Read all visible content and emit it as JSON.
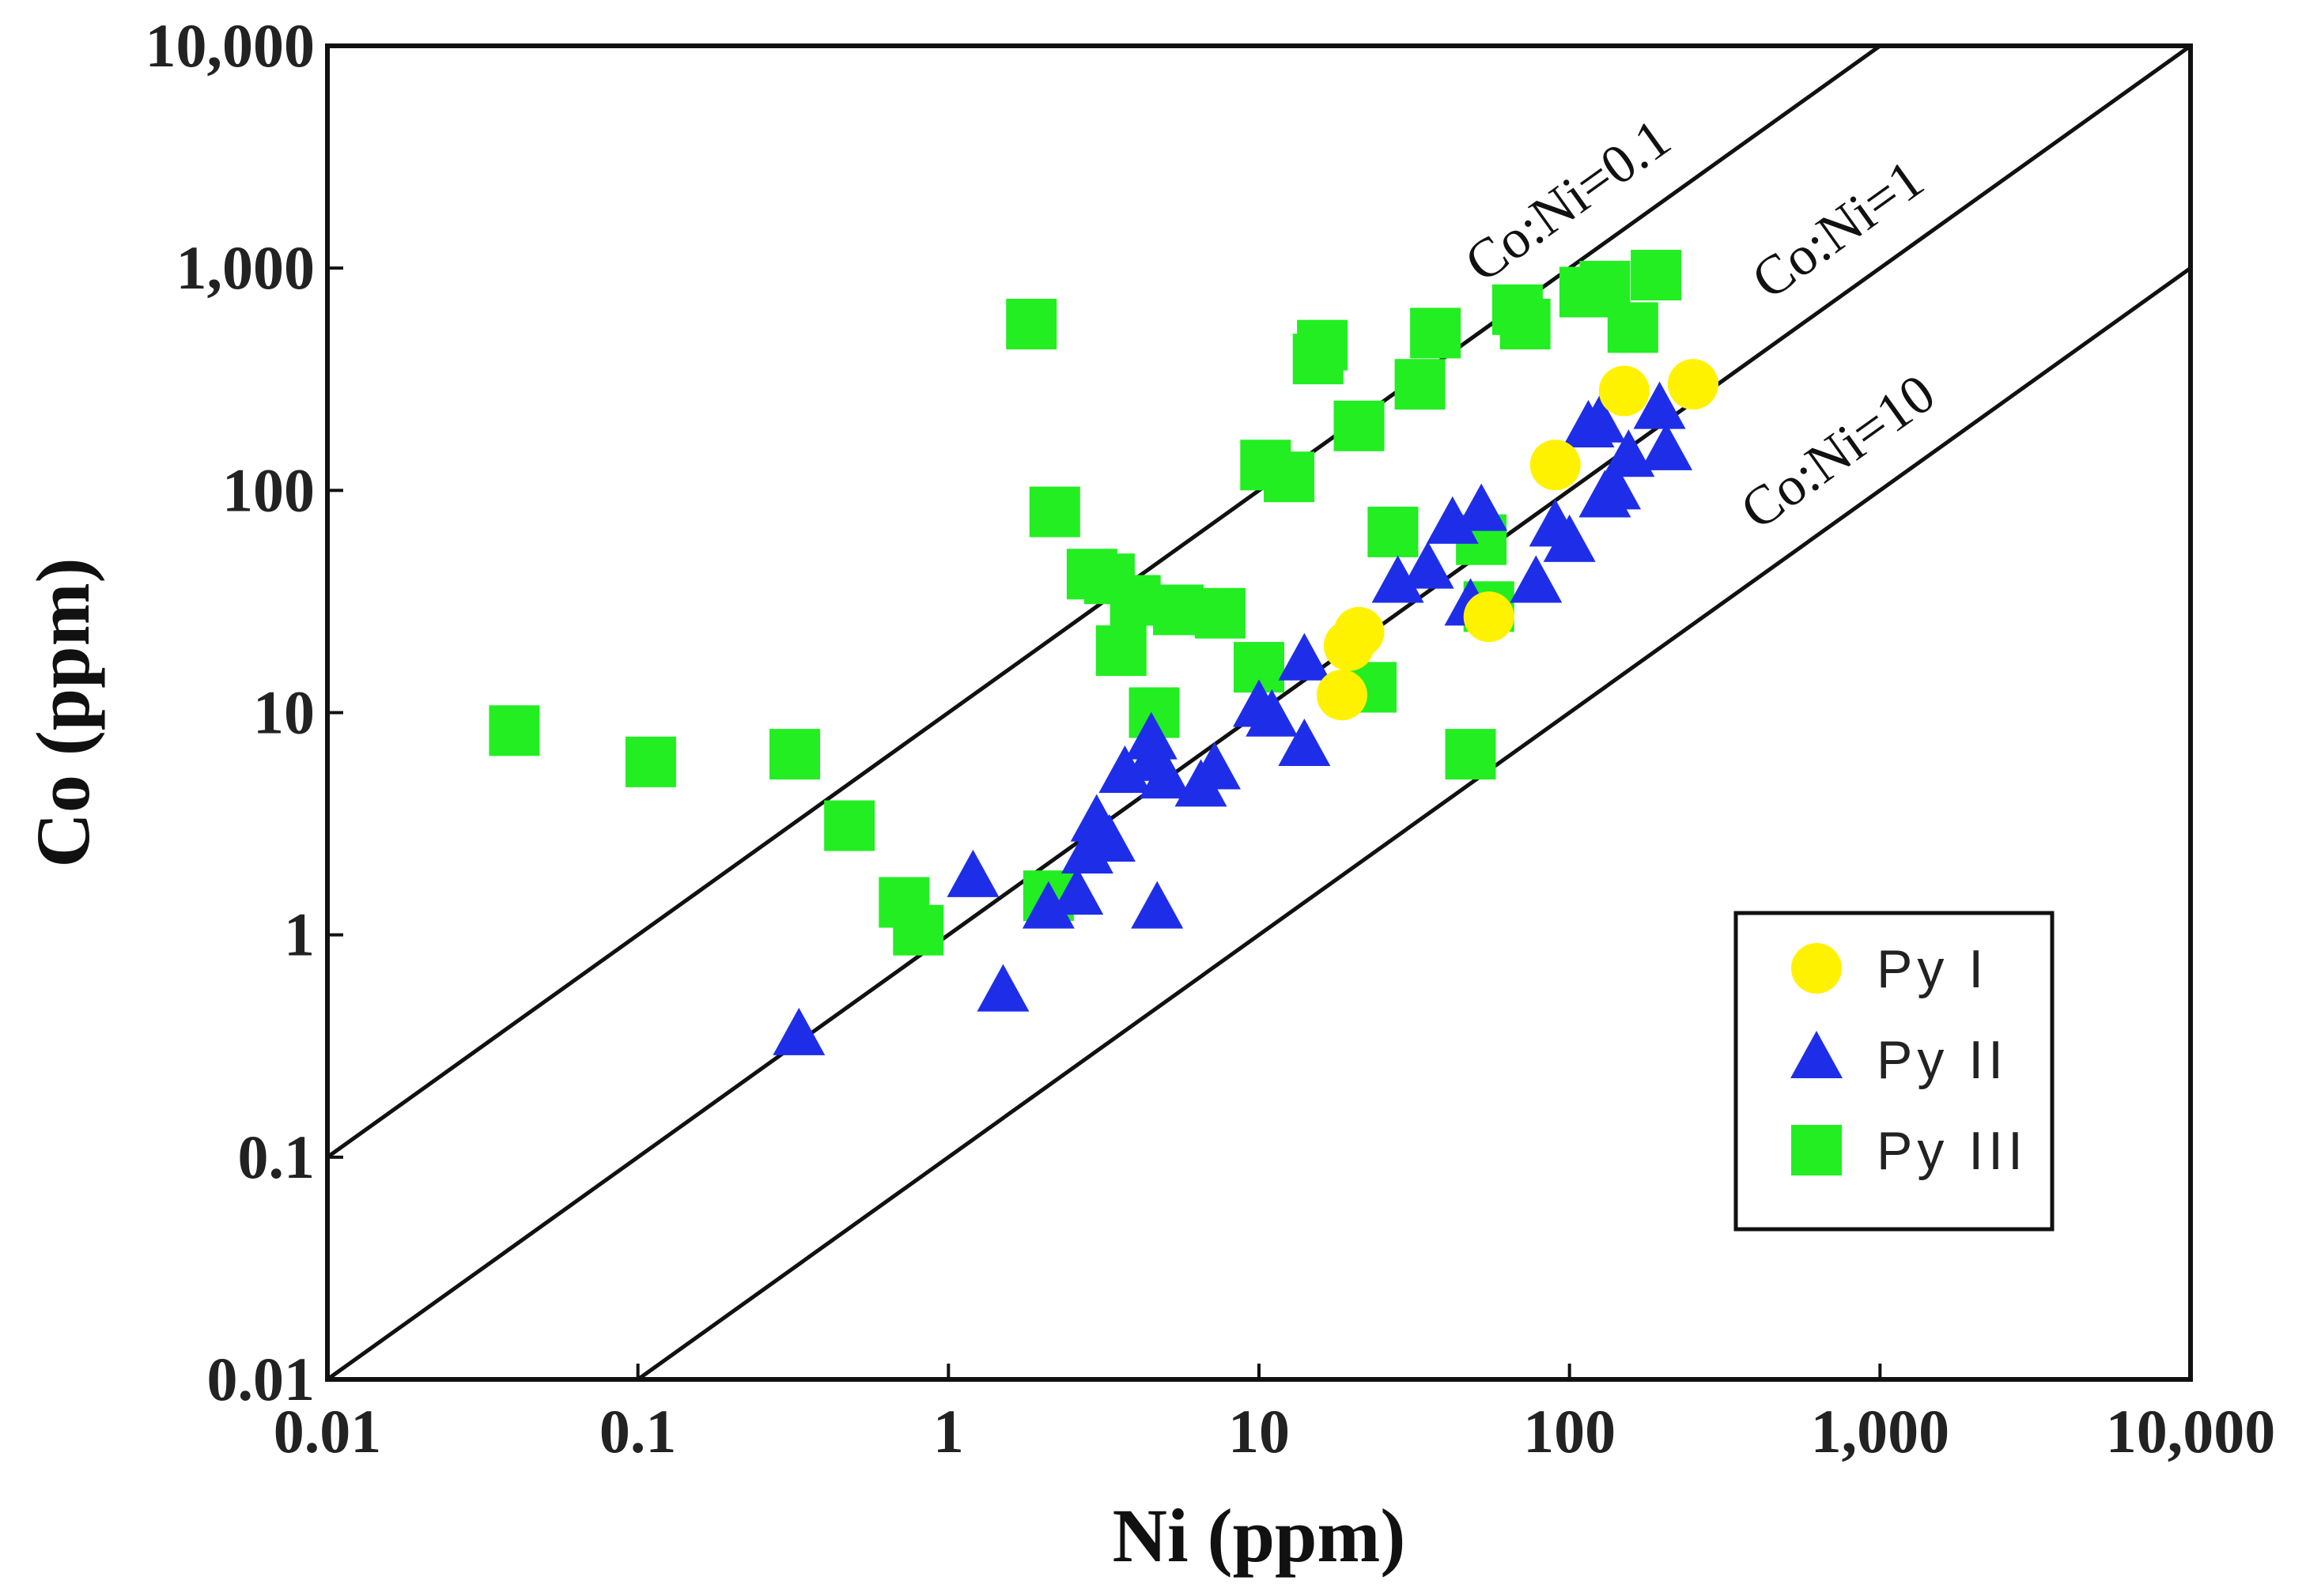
{
  "chart_data": {
    "type": "scatter",
    "title": "",
    "xlabel": "Ni (ppm)",
    "ylabel": "Co (ppm)",
    "xscale": "log",
    "yscale": "log",
    "xlim": [
      0.01,
      10000
    ],
    "ylim": [
      0.01,
      10000
    ],
    "xticks": [
      0.01,
      0.1,
      1,
      10,
      100,
      1000,
      10000
    ],
    "yticks": [
      0.01,
      0.1,
      1,
      10,
      100,
      1000,
      10000
    ],
    "xtick_labels": [
      "0.01",
      "0.1",
      "1",
      "10",
      "100",
      "1,000",
      "10,000"
    ],
    "ytick_labels": [
      "0.01",
      "0.1",
      "1",
      "10",
      "100",
      "1,000",
      "10,000"
    ],
    "grid": false,
    "legend_position": "bottom-right",
    "ratio_lines": [
      {
        "label": "Co:Ni=0.1",
        "ratio": 10
      },
      {
        "label": "Co:Ni=1",
        "ratio": 1
      },
      {
        "label": "Co:Ni=10",
        "ratio": 0.1
      }
    ],
    "series": [
      {
        "name": "Py I",
        "marker": "circle",
        "color": "#FFF200",
        "points": [
          [
            18.5,
            12
          ],
          [
            19.5,
            20
          ],
          [
            21,
            23
          ],
          [
            55,
            27
          ],
          [
            90,
            130
          ],
          [
            150,
            280
          ],
          [
            250,
            300
          ]
        ]
      },
      {
        "name": "Py II",
        "marker": "triangle",
        "color": "#1E2EE8",
        "points": [
          [
            0.33,
            0.35
          ],
          [
            1.2,
            1.8
          ],
          [
            1.5,
            0.55
          ],
          [
            2.1,
            1.3
          ],
          [
            2.6,
            1.5
          ],
          [
            2.8,
            2.3
          ],
          [
            3.0,
            3.2
          ],
          [
            3.3,
            2.6
          ],
          [
            3.7,
            5.3
          ],
          [
            4.5,
            7.5
          ],
          [
            4.5,
            6.0
          ],
          [
            5.0,
            5.0
          ],
          [
            4.7,
            1.3
          ],
          [
            6.5,
            4.6
          ],
          [
            7.2,
            5.5
          ],
          [
            10,
            10.5
          ],
          [
            11,
            9.5
          ],
          [
            14,
            7.0
          ],
          [
            14,
            17
          ],
          [
            28,
            38
          ],
          [
            35,
            44
          ],
          [
            42,
            70
          ],
          [
            48,
            30
          ],
          [
            52,
            80
          ],
          [
            78,
            38
          ],
          [
            90,
            68
          ],
          [
            100,
            58
          ],
          [
            115,
            190
          ],
          [
            125,
            200
          ],
          [
            130,
            92
          ],
          [
            140,
            100
          ],
          [
            155,
            140
          ],
          [
            195,
            230
          ],
          [
            205,
            150
          ]
        ]
      },
      {
        "name": "Py III",
        "marker": "square",
        "color": "#22EE22",
        "points": [
          [
            0.04,
            8.3
          ],
          [
            0.11,
            6.0
          ],
          [
            0.32,
            6.5
          ],
          [
            0.48,
            3.1
          ],
          [
            0.72,
            1.4
          ],
          [
            0.8,
            1.05
          ],
          [
            1.85,
            560
          ],
          [
            2.1,
            1.5
          ],
          [
            2.2,
            80
          ],
          [
            2.9,
            42
          ],
          [
            3.3,
            40
          ],
          [
            3.6,
            19
          ],
          [
            4.0,
            32
          ],
          [
            4.6,
            10
          ],
          [
            5.5,
            29
          ],
          [
            7.5,
            28
          ],
          [
            10,
            16
          ],
          [
            10.5,
            130
          ],
          [
            12.5,
            115
          ],
          [
            15.5,
            390
          ],
          [
            16,
            450
          ],
          [
            21,
            195
          ],
          [
            23,
            13
          ],
          [
            27,
            65
          ],
          [
            33,
            300
          ],
          [
            37,
            510
          ],
          [
            48,
            6.5
          ],
          [
            52,
            60
          ],
          [
            55,
            30
          ],
          [
            68,
            650
          ],
          [
            72,
            560
          ],
          [
            112,
            780
          ],
          [
            130,
            830
          ],
          [
            160,
            540
          ],
          [
            190,
            930
          ]
        ]
      }
    ]
  }
}
